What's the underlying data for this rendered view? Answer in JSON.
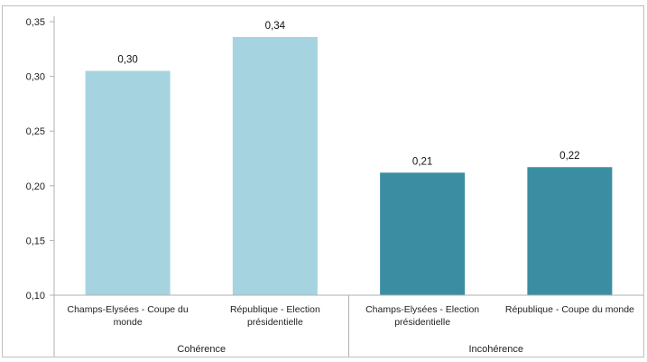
{
  "chart_data": {
    "type": "bar",
    "y_ticks": [
      "0,10",
      "0,15",
      "0,20",
      "0,25",
      "0,30",
      "0,35"
    ],
    "y_tick_values": [
      0.1,
      0.15,
      0.2,
      0.25,
      0.3,
      0.35
    ],
    "ylim": [
      0.1,
      0.35
    ],
    "grid": false,
    "legend": "none",
    "groups": [
      {
        "name": "Cohérence",
        "color": "#a6d3e0",
        "bars": [
          {
            "category": [
              "Champs-Elysées - Coupe du",
              "monde"
            ],
            "value": 0.305,
            "label": "0,30"
          },
          {
            "category": [
              "République - Election",
              "présidentielle"
            ],
            "value": 0.336,
            "label": "0,34"
          }
        ]
      },
      {
        "name": "Incohérence",
        "color": "#3b8ea2",
        "bars": [
          {
            "category": [
              "Champs-Elysées -  Election",
              "présidentielle"
            ],
            "value": 0.212,
            "label": "0,21"
          },
          {
            "category": [
              "République - Coupe du monde"
            ],
            "value": 0.217,
            "label": "0,22"
          }
        ]
      }
    ],
    "frame_color": "#bfbfbf",
    "axis_color": "#b0b0b0"
  }
}
